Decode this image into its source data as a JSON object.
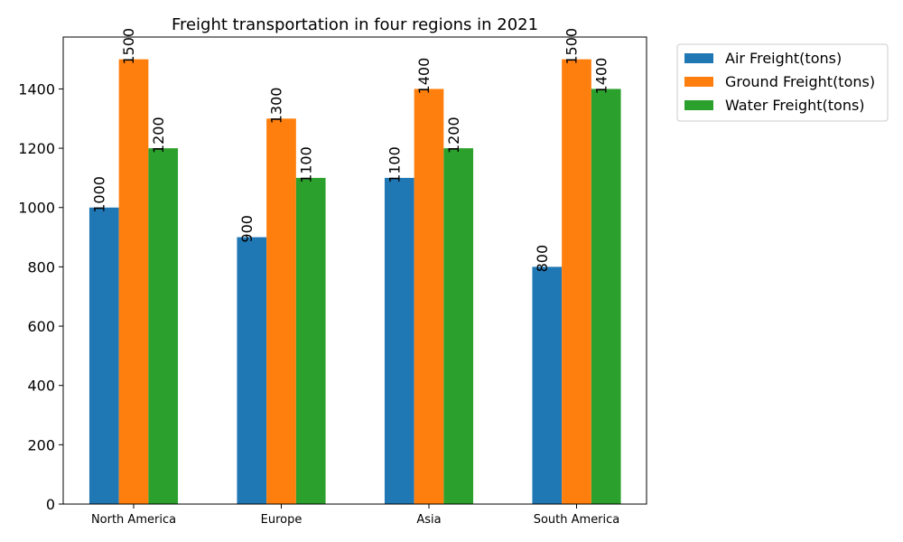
{
  "chart_data": {
    "type": "bar",
    "title": "Freight transportation in four regions in 2021",
    "xlabel": "",
    "ylabel": "",
    "categories": [
      "North America",
      "Europe",
      "Asia",
      "South America"
    ],
    "series": [
      {
        "name": "Air Freight(tons)",
        "color": "#1f77b4",
        "values": [
          1000,
          900,
          1100,
          800
        ]
      },
      {
        "name": "Ground Freight(tons)",
        "color": "#ff7f0e",
        "values": [
          1500,
          1300,
          1400,
          1500
        ]
      },
      {
        "name": "Water Freight(tons)",
        "color": "#2ca02c",
        "values": [
          1200,
          1100,
          1200,
          1400
        ]
      }
    ],
    "ylim": [
      0,
      1575
    ],
    "yticks": [
      0,
      200,
      400,
      600,
      800,
      1000,
      1200,
      1400
    ],
    "grid": false,
    "legend_position": "outside top-right",
    "data_labels": "rotated vertical above bars"
  }
}
